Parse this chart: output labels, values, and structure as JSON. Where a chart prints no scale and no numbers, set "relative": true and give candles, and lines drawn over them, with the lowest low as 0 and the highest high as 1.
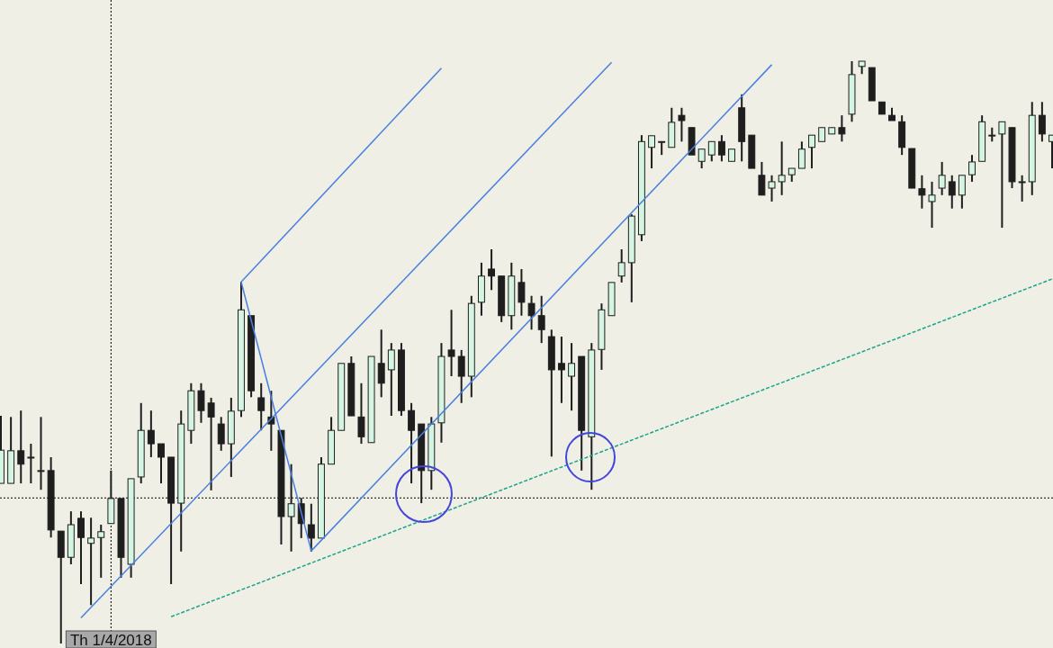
{
  "chart_data": {
    "type": "candlestick",
    "relative": true,
    "tick_labels": "x",
    "categories": [
      null,
      null,
      null,
      null,
      null,
      null,
      null,
      null,
      null,
      null,
      null,
      "Th 1/4/2018",
      null,
      null,
      null,
      null,
      null,
      null,
      null,
      null,
      null,
      null,
      null,
      null,
      null,
      null,
      null,
      null,
      null,
      null,
      null,
      null,
      null,
      null,
      null,
      null,
      null,
      null,
      null,
      null,
      null,
      null,
      null,
      null,
      null,
      null,
      null,
      null,
      null,
      null,
      null,
      null,
      null,
      null,
      null,
      null,
      null,
      null,
      null,
      null,
      null,
      null,
      null,
      null,
      null,
      null,
      null,
      null,
      null,
      null,
      null,
      null,
      null,
      null,
      null,
      null,
      null,
      null,
      null,
      null,
      null,
      null,
      null,
      null,
      null,
      null,
      null,
      null,
      null,
      null,
      null,
      null,
      null,
      null,
      null,
      null,
      null,
      null,
      null,
      null,
      null,
      null,
      null,
      null,
      null,
      null
    ],
    "ohlc": [
      [
        0.275,
        0.391,
        0.275,
        0.332
      ],
      [
        0.275,
        0.389,
        0.275,
        0.331
      ],
      [
        0.331,
        0.4,
        0.275,
        0.308
      ],
      [
        0.32,
        0.343,
        0.275,
        0.32
      ],
      [
        0.297,
        0.389,
        0.264,
        0.297
      ],
      [
        0.297,
        0.32,
        0.182,
        0.195
      ],
      [
        0.193,
        0.193,
        0,
        0.148
      ],
      [
        0.148,
        0.227,
        0.136,
        0.204
      ],
      [
        0.215,
        0.227,
        0.102,
        0.182
      ],
      [
        0.172,
        0.216,
        0.066,
        0.181
      ],
      [
        0.182,
        0.204,
        0.113,
        0.192
      ],
      [
        0.206,
        0.297,
        0.206,
        0.249
      ],
      [
        0.249,
        0.249,
        0.113,
        0.148
      ],
      [
        0.136,
        0.283,
        0.113,
        0.283
      ],
      [
        0.286,
        0.413,
        0.275,
        0.366
      ],
      [
        0.366,
        0.4,
        0.32,
        0.343
      ],
      [
        0.343,
        0.343,
        0.275,
        0.32
      ],
      [
        0.32,
        0.32,
        0.102,
        0.241
      ],
      [
        0.241,
        0.4,
        0.158,
        0.377
      ],
      [
        0.366,
        0.447,
        0.343,
        0.434
      ],
      [
        0.434,
        0.447,
        0.379,
        0.4
      ],
      [
        0.413,
        0.422,
        0.263,
        0.389
      ],
      [
        0.377,
        0.389,
        0.331,
        0.343
      ],
      [
        0.343,
        0.422,
        0.286,
        0.399
      ],
      [
        0.4,
        0.621,
        0.389,
        0.573
      ],
      [
        0.563,
        0.563,
        0.423,
        0.434
      ],
      [
        0.422,
        0.447,
        0.366,
        0.4
      ],
      [
        0.389,
        0.434,
        0.331,
        0.377
      ],
      [
        0.366,
        0.366,
        0.17,
        0.218
      ],
      [
        0.218,
        0.308,
        0.158,
        0.24
      ],
      [
        0.24,
        0.25,
        0.181,
        0.206
      ],
      [
        0.204,
        0.24,
        0.158,
        0.181
      ],
      [
        0.181,
        0.32,
        0.181,
        0.308
      ],
      [
        0.308,
        0.389,
        0.308,
        0.366
      ],
      [
        0.366,
        0.481,
        0.366,
        0.481
      ],
      [
        0.481,
        0.493,
        0.391,
        0.391
      ],
      [
        0.389,
        0.447,
        0.343,
        0.355
      ],
      [
        0.345,
        0.493,
        0.345,
        0.493
      ],
      [
        0.481,
        0.539,
        0.423,
        0.447
      ],
      [
        0.47,
        0.516,
        0.391,
        0.504
      ],
      [
        0.504,
        0.516,
        0.391,
        0.4
      ],
      [
        0.4,
        0.413,
        0.275,
        0.366
      ],
      [
        0.377,
        0.377,
        0.241,
        0.297
      ],
      [
        0.297,
        0.389,
        0.264,
        0.377
      ],
      [
        0.379,
        0.516,
        0.345,
        0.493
      ],
      [
        0.504,
        0.573,
        0.459,
        0.493
      ],
      [
        0.493,
        0.504,
        0.413,
        0.459
      ],
      [
        0.459,
        0.597,
        0.423,
        0.584
      ],
      [
        0.586,
        0.654,
        0.563,
        0.631
      ],
      [
        0.643,
        0.677,
        0.607,
        0.631
      ],
      [
        0.631,
        0.631,
        0.552,
        0.563
      ],
      [
        0.563,
        0.654,
        0.539,
        0.631
      ],
      [
        0.62,
        0.643,
        0.563,
        0.586
      ],
      [
        0.584,
        0.597,
        0.539,
        0.563
      ],
      [
        0.563,
        0.597,
        0.516,
        0.539
      ],
      [
        0.527,
        0.539,
        0.321,
        0.47
      ],
      [
        0.481,
        0.527,
        0.413,
        0.47
      ],
      [
        0.459,
        0.516,
        0.4,
        0.481
      ],
      [
        0.493,
        0.493,
        0.297,
        0.366
      ],
      [
        0.355,
        0.516,
        0.264,
        0.504
      ],
      [
        0.505,
        0.584,
        0.47,
        0.573
      ],
      [
        0.563,
        0.62,
        0.563,
        0.62
      ],
      [
        0.631,
        0.677,
        0.62,
        0.654
      ],
      [
        0.654,
        0.737,
        0.586,
        0.734
      ],
      [
        0.702,
        0.873,
        0.691,
        0.862
      ],
      [
        0.852,
        0.872,
        0.816,
        0.872
      ],
      [
        0.862,
        0.862,
        0.839,
        0.862
      ],
      [
        0.852,
        0.92,
        0.852,
        0.895
      ],
      [
        0.907,
        0.92,
        0.862,
        0.898
      ],
      [
        0.886,
        0.886,
        0.839,
        0.839
      ],
      [
        0.828,
        0.849,
        0.816,
        0.849
      ],
      [
        0.839,
        0.862,
        0.828,
        0.862
      ],
      [
        0.862,
        0.873,
        0.828,
        0.839
      ],
      [
        0.828,
        0.849,
        0.828,
        0.849
      ],
      [
        0.92,
        0.943,
        0.828,
        0.862
      ],
      [
        0.873,
        0.873,
        0.816,
        0.816
      ],
      [
        0.804,
        0.827,
        0.77,
        0.77
      ],
      [
        0.782,
        0.804,
        0.759,
        0.793
      ],
      [
        0.793,
        0.862,
        0.77,
        0.804
      ],
      [
        0.805,
        0.816,
        0.793,
        0.816
      ],
      [
        0.816,
        0.862,
        0.816,
        0.849
      ],
      [
        0.852,
        0.873,
        0.816,
        0.873
      ],
      [
        0.862,
        0.886,
        0.862,
        0.886
      ],
      [
        0.875,
        0.886,
        0.875,
        0.886
      ],
      [
        0.886,
        0.907,
        0.862,
        0.875
      ],
      [
        0.909,
        1,
        0.896,
        0.977
      ],
      [
        0.991,
        1,
        0.978,
        1
      ],
      [
        0.989,
        0.989,
        0.932,
        0.932
      ],
      [
        0.93,
        0.93,
        0.909,
        0.909
      ],
      [
        0.907,
        0.92,
        0.898,
        0.898
      ],
      [
        0.896,
        0.907,
        0.839,
        0.852
      ],
      [
        0.85,
        0.85,
        0.782,
        0.782
      ],
      [
        0.781,
        0.804,
        0.747,
        0.77
      ],
      [
        0.759,
        0.793,
        0.714,
        0.77
      ],
      [
        0.782,
        0.827,
        0.77,
        0.804
      ],
      [
        0.793,
        0.804,
        0.747,
        0.77
      ],
      [
        0.77,
        0.804,
        0.747,
        0.804
      ],
      [
        0.805,
        0.839,
        0.793,
        0.827
      ],
      [
        0.828,
        0.907,
        0.828,
        0.896
      ],
      [
        0.873,
        0.886,
        0.862,
        0.873
      ],
      [
        0.875,
        0.896,
        0.714,
        0.896
      ],
      [
        0.886,
        0.886,
        0.782,
        0.793
      ],
      [
        0.793,
        0.804,
        0.759,
        0.793
      ],
      [
        0.793,
        0.93,
        0.77,
        0.907
      ],
      [
        0.907,
        0.93,
        0.862,
        0.875
      ],
      [
        0.862,
        0.873,
        0.816,
        0.873
      ]
    ],
    "series": [
      {
        "type": "line",
        "color": "#4a7fe0",
        "line_style": "solid",
        "values": [
          null,
          null,
          null,
          null,
          null,
          null,
          null,
          null,
          0.044,
          null,
          null,
          null,
          null,
          null,
          null,
          null,
          null,
          null,
          null,
          null,
          null,
          null,
          null,
          null,
          null,
          null,
          null,
          null,
          null,
          null,
          null,
          null,
          null,
          null,
          null,
          null,
          null,
          null,
          null,
          null,
          null,
          null,
          null,
          null,
          null,
          null,
          null,
          null,
          null,
          null,
          null,
          null,
          null,
          null,
          null,
          null,
          null,
          null,
          null,
          null,
          null,
          0.998,
          null,
          null,
          null,
          null,
          null,
          null,
          null,
          null,
          null,
          null,
          null,
          null,
          null,
          null,
          null,
          null,
          null,
          null,
          null,
          null,
          null,
          null,
          null,
          null,
          null,
          null,
          null,
          null,
          null,
          null,
          null,
          null,
          null,
          null,
          null,
          null,
          null,
          null,
          null,
          null,
          null,
          null,
          null,
          null
        ]
      },
      {
        "type": "line",
        "color": "#4a7fe0",
        "line_style": "solid",
        "values": [
          null,
          null,
          null,
          null,
          null,
          null,
          null,
          null,
          null,
          null,
          null,
          null,
          null,
          null,
          null,
          null,
          null,
          null,
          null,
          null,
          null,
          null,
          null,
          null,
          0.621,
          null,
          null,
          null,
          null,
          null,
          null,
          null,
          null,
          null,
          null,
          null,
          null,
          null,
          null,
          null,
          null,
          null,
          null,
          null,
          0.988,
          null,
          null,
          null,
          null,
          null,
          null,
          null,
          null,
          null,
          null,
          null,
          null,
          null,
          null,
          null,
          null,
          null,
          null,
          null,
          null,
          null,
          null,
          null,
          null,
          null,
          null,
          null,
          null,
          null,
          null,
          null,
          null,
          null,
          null,
          null,
          null,
          null,
          null,
          null,
          null,
          null,
          null,
          null,
          null,
          null,
          null,
          null,
          null,
          null,
          null,
          null,
          null,
          null,
          null,
          null,
          null,
          null,
          null,
          null,
          null,
          null
        ]
      },
      {
        "type": "line",
        "color": "#4a7fe0",
        "line_style": "solid",
        "values": [
          null,
          null,
          null,
          null,
          null,
          null,
          null,
          null,
          null,
          null,
          null,
          null,
          null,
          null,
          null,
          null,
          null,
          null,
          null,
          null,
          null,
          null,
          null,
          null,
          0.621,
          null,
          null,
          null,
          null,
          null,
          null,
          0.159,
          null,
          null,
          null,
          null,
          null,
          null,
          null,
          null,
          null,
          null,
          null,
          null,
          null,
          null,
          null,
          null,
          null,
          null,
          null,
          null,
          null,
          null,
          null,
          null,
          null,
          null,
          null,
          null,
          null,
          null,
          null,
          null,
          null,
          null,
          null,
          null,
          null,
          null,
          null,
          null,
          null,
          null,
          null,
          null,
          null,
          null,
          null,
          null,
          null,
          null,
          null,
          null,
          null,
          null,
          null,
          null,
          null,
          null,
          null,
          null,
          null,
          null,
          null,
          null,
          null,
          null,
          null,
          null,
          null,
          null,
          null,
          null,
          null,
          null
        ]
      },
      {
        "type": "line",
        "color": "#4a7fe0",
        "line_style": "solid",
        "values": [
          null,
          null,
          null,
          null,
          null,
          null,
          null,
          null,
          null,
          null,
          null,
          null,
          null,
          null,
          null,
          null,
          null,
          null,
          null,
          null,
          null,
          null,
          null,
          null,
          null,
          null,
          null,
          null,
          null,
          null,
          null,
          0.159,
          null,
          null,
          null,
          null,
          null,
          null,
          null,
          null,
          null,
          null,
          null,
          null,
          null,
          null,
          null,
          null,
          null,
          null,
          null,
          null,
          null,
          null,
          null,
          null,
          null,
          null,
          null,
          null,
          null,
          null,
          null,
          null,
          null,
          null,
          null,
          null,
          null,
          null,
          null,
          null,
          null,
          null,
          null,
          null,
          null,
          0.994,
          null,
          null,
          null,
          null,
          null,
          null,
          null,
          null,
          null,
          null,
          null,
          null,
          null,
          null,
          null,
          null,
          null,
          null,
          null,
          null,
          null,
          null,
          null,
          null,
          null,
          null,
          null,
          null
        ]
      },
      {
        "type": "line",
        "color": "#1aa58a",
        "line_style": "dashed",
        "values": [
          null,
          null,
          null,
          null,
          null,
          null,
          null,
          null,
          null,
          null,
          null,
          null,
          null,
          null,
          null,
          null,
          null,
          0.046,
          null,
          null,
          null,
          null,
          null,
          null,
          null,
          null,
          null,
          null,
          null,
          null,
          null,
          null,
          null,
          null,
          null,
          null,
          null,
          null,
          null,
          null,
          null,
          null,
          null,
          null,
          null,
          null,
          null,
          null,
          null,
          null,
          null,
          null,
          null,
          null,
          null,
          null,
          null,
          null,
          null,
          null,
          null,
          null,
          null,
          null,
          null,
          null,
          null,
          null,
          null,
          null,
          null,
          null,
          null,
          null,
          null,
          null,
          null,
          null,
          null,
          null,
          null,
          null,
          null,
          null,
          null,
          null,
          null,
          null,
          null,
          null,
          null,
          null,
          null,
          null,
          null,
          null,
          null,
          null,
          null,
          null,
          null,
          null,
          null,
          null,
          null,
          0.626
        ]
      }
    ],
    "ref_lines": [
      {
        "axis": "x",
        "value": "Th 1/4/2018",
        "color": "#000000",
        "line_style": "dotted"
      },
      {
        "axis": "y",
        "value": 0.25,
        "color": "#000000",
        "line_style": "dotted"
      }
    ]
  }
}
